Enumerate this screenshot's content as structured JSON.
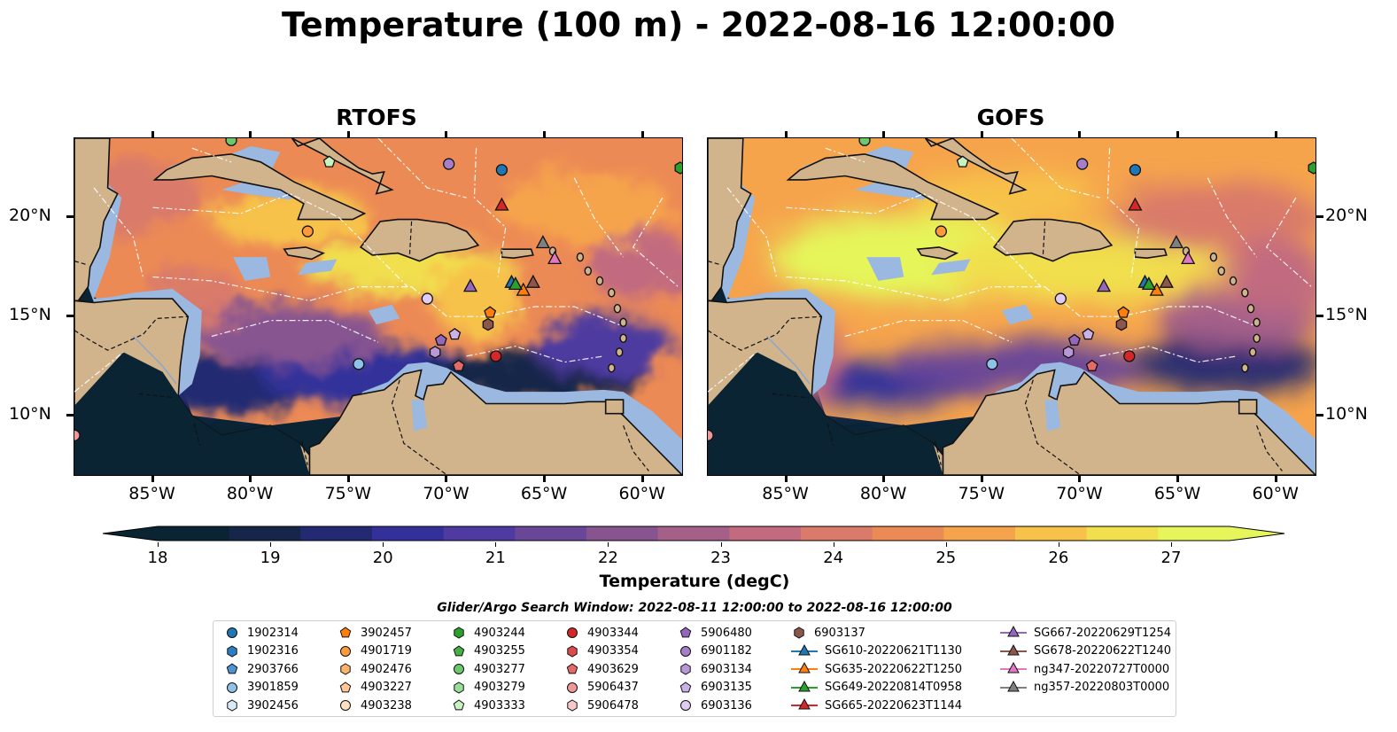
{
  "title": "Temperature (100 m) - 2022-08-16 12:00:00",
  "panels": [
    {
      "title": "RTOFS"
    },
    {
      "title": "GOFS"
    }
  ],
  "x_ticks": [
    "85°W",
    "80°W",
    "75°W",
    "70°W",
    "65°W",
    "60°W"
  ],
  "y_ticks": [
    "20°N",
    "15°N",
    "10°N"
  ],
  "colorbar": {
    "label": "Temperature (degC)",
    "ticks": [
      "18",
      "19",
      "20",
      "21",
      "22",
      "23",
      "24",
      "25",
      "26",
      "27"
    ],
    "range": [
      18,
      27
    ],
    "colors": [
      "#0a2433",
      "#16264a",
      "#232a72",
      "#33309a",
      "#4e3aa0",
      "#6a4698",
      "#875490",
      "#a5608a",
      "#c16a80",
      "#d97a6a",
      "#ec8a55",
      "#f6a44c",
      "#f7c24a",
      "#f1df4e",
      "#e5f55a"
    ]
  },
  "legend": {
    "title": "Glider/Argo Search Window: 2022-08-11 12:00:00 to 2022-08-16 12:00:00",
    "items": [
      {
        "label": "1902314",
        "marker": "circle",
        "color": "#1f77b4"
      },
      {
        "label": "1902316",
        "marker": "hexagon",
        "color": "#2a7fc4"
      },
      {
        "label": "2903766",
        "marker": "pentagon",
        "color": "#4d94d4"
      },
      {
        "label": "3901859",
        "marker": "circle",
        "color": "#8fc2e8"
      },
      {
        "label": "3902456",
        "marker": "hexagon",
        "color": "#d6ebf7"
      },
      {
        "label": "3902457",
        "marker": "pentagon",
        "color": "#ff7f0e"
      },
      {
        "label": "4901719",
        "marker": "circle",
        "color": "#ff9a3c"
      },
      {
        "label": "4902476",
        "marker": "hexagon",
        "color": "#ffb26b"
      },
      {
        "label": "4903227",
        "marker": "pentagon",
        "color": "#ffc896"
      },
      {
        "label": "4903238",
        "marker": "circle",
        "color": "#ffe0c0"
      },
      {
        "label": "4903244",
        "marker": "hexagon",
        "color": "#2ca02c"
      },
      {
        "label": "4903255",
        "marker": "pentagon",
        "color": "#45b045"
      },
      {
        "label": "4903277",
        "marker": "circle",
        "color": "#6cc86c"
      },
      {
        "label": "4903279",
        "marker": "hexagon",
        "color": "#98dd98"
      },
      {
        "label": "4903333",
        "marker": "pentagon",
        "color": "#c8f2c0"
      },
      {
        "label": "4903344",
        "marker": "circle",
        "color": "#d62728"
      },
      {
        "label": "4903354",
        "marker": "hexagon",
        "color": "#dc4a4a"
      },
      {
        "label": "4903629",
        "marker": "pentagon",
        "color": "#e46a6a"
      },
      {
        "label": "5906437",
        "marker": "circle",
        "color": "#f09898"
      },
      {
        "label": "5906478",
        "marker": "hexagon",
        "color": "#f8c8c8"
      },
      {
        "label": "5906480",
        "marker": "pentagon",
        "color": "#9467bd"
      },
      {
        "label": "6901182",
        "marker": "circle",
        "color": "#a67fcb"
      },
      {
        "label": "6903134",
        "marker": "hexagon",
        "color": "#b898d8"
      },
      {
        "label": "6903135",
        "marker": "pentagon",
        "color": "#cbb2e6"
      },
      {
        "label": "6903136",
        "marker": "circle",
        "color": "#e0ccf2"
      },
      {
        "label": "6903137",
        "marker": "hexagon",
        "color": "#8c564b"
      },
      {
        "label": "SG610-20220621T1130",
        "marker": "triangle-line",
        "color": "#1f77b4"
      },
      {
        "label": "SG635-20220622T1250",
        "marker": "triangle-line",
        "color": "#ff7f0e"
      },
      {
        "label": "SG649-20220814T0958",
        "marker": "triangle-line",
        "color": "#2ca02c"
      },
      {
        "label": "SG665-20220623T1144",
        "marker": "triangle-line",
        "color": "#d62728"
      },
      {
        "label": "SG667-20220629T1254",
        "marker": "triangle-line",
        "color": "#9467bd"
      },
      {
        "label": "SG678-20220622T1240",
        "marker": "triangle-line",
        "color": "#8c564b"
      },
      {
        "label": "ng347-20220727T0000",
        "marker": "triangle-line",
        "color": "#e377c2"
      },
      {
        "label": "ng357-20220803T0000",
        "marker": "triangle-line",
        "color": "#7f7f7f"
      }
    ]
  },
  "map_extent": {
    "lon": [
      -89,
      -58
    ],
    "lat": [
      7,
      24
    ]
  },
  "observations": [
    {
      "id": "1902314",
      "lon": -67.2,
      "lat": 22.4,
      "marker": "circle",
      "color": "#1f77b4"
    },
    {
      "id": "3901859",
      "lon": -74.5,
      "lat": 12.6,
      "marker": "circle",
      "color": "#8fc2e8"
    },
    {
      "id": "4901719",
      "lon": -77.1,
      "lat": 19.3,
      "marker": "circle",
      "color": "#ff9a3c"
    },
    {
      "id": "3902457",
      "lon": -67.8,
      "lat": 15.2,
      "marker": "pentagon",
      "color": "#ff7f0e"
    },
    {
      "id": "4903244",
      "lon": -58.1,
      "lat": 22.5,
      "marker": "hexagon",
      "color": "#2ca02c"
    },
    {
      "id": "4903277",
      "lon": -81.0,
      "lat": 23.9,
      "marker": "circle",
      "color": "#6cc86c"
    },
    {
      "id": "4903333",
      "lon": -76.0,
      "lat": 22.8,
      "marker": "pentagon",
      "color": "#c8f2c0"
    },
    {
      "id": "4903344",
      "lon": -67.5,
      "lat": 13.0,
      "marker": "circle",
      "color": "#d62728"
    },
    {
      "id": "4903629",
      "lon": -69.4,
      "lat": 12.5,
      "marker": "pentagon",
      "color": "#e46a6a"
    },
    {
      "id": "5906437",
      "lon": -89.0,
      "lat": 9.0,
      "marker": "circle",
      "color": "#f09898"
    },
    {
      "id": "6903137",
      "lon": -67.9,
      "lat": 14.6,
      "marker": "hexagon",
      "color": "#8c564b"
    },
    {
      "id": "5906480",
      "lon": -70.3,
      "lat": 13.8,
      "marker": "pentagon",
      "color": "#9467bd"
    },
    {
      "id": "6901182",
      "lon": -69.9,
      "lat": 22.7,
      "marker": "circle",
      "color": "#a67fcb"
    },
    {
      "id": "6903134",
      "lon": -70.6,
      "lat": 13.2,
      "marker": "hexagon",
      "color": "#b898d8"
    },
    {
      "id": "6903135",
      "lon": -69.6,
      "lat": 14.1,
      "marker": "pentagon",
      "color": "#cbb2e6"
    },
    {
      "id": "6903136",
      "lon": -71.0,
      "lat": 15.9,
      "marker": "circle",
      "color": "#e0ccf2"
    },
    {
      "id": "SG610-20220621T1130",
      "lon": -66.7,
      "lat": 16.7,
      "marker": "triangle",
      "color": "#1f77b4"
    },
    {
      "id": "SG635-20220622T1250",
      "lon": -66.1,
      "lat": 16.3,
      "marker": "triangle",
      "color": "#ff7f0e"
    },
    {
      "id": "SG649-20220814T0958",
      "lon": -66.5,
      "lat": 16.6,
      "marker": "triangle",
      "color": "#2ca02c"
    },
    {
      "id": "SG665-20220623T1144",
      "lon": -67.2,
      "lat": 20.6,
      "marker": "triangle",
      "color": "#d62728"
    },
    {
      "id": "SG667-20220629T1254",
      "lon": -68.8,
      "lat": 16.5,
      "marker": "triangle",
      "color": "#9467bd"
    },
    {
      "id": "SG678-20220622T1240",
      "lon": -65.6,
      "lat": 16.7,
      "marker": "triangle",
      "color": "#8c564b"
    },
    {
      "id": "ng347-20220727T0000",
      "lon": -64.5,
      "lat": 17.9,
      "marker": "triangle",
      "color": "#e377c2"
    },
    {
      "id": "ng357-20220803T0000",
      "lon": -65.1,
      "lat": 18.7,
      "marker": "triangle",
      "color": "#7f7f7f"
    }
  ]
}
